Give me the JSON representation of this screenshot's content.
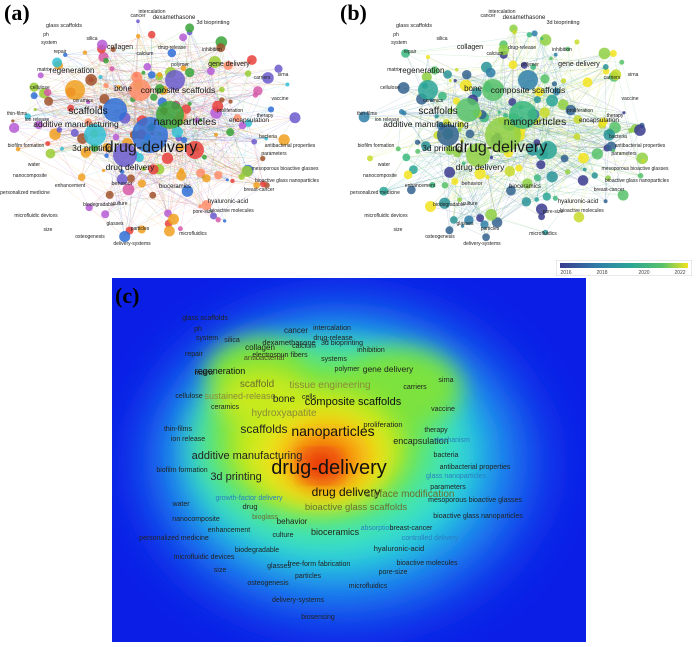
{
  "panels": {
    "a": {
      "label": "(a)"
    },
    "b": {
      "label": "(b)"
    },
    "c": {
      "label": "(c)"
    }
  },
  "legend": {
    "ticks": [
      "2016",
      "2018",
      "2020",
      "2022"
    ],
    "colors": [
      "#3b3b8f",
      "#2f7fa8",
      "#2ba597",
      "#57c26a",
      "#f2e41e"
    ]
  },
  "network_terms": [
    "intercalation",
    "cancer",
    "dexamethasone",
    "3d bioprinting",
    "glass scaffolds",
    "ph",
    "silica",
    "system",
    "collagen",
    "calcium",
    "drug-release",
    "inhibition",
    "repair",
    "matrix",
    "regeneration",
    "polymer",
    "gene delivery",
    "carriers",
    "sirna",
    "cellulose",
    "bone",
    "composite scaffolds",
    "vaccine",
    "ceramics",
    "scaffolds",
    "nanoparticles",
    "proliferation",
    "encapsulation",
    "therapy",
    "additive manufacturing",
    "thin-films",
    "ion release",
    "bacteria",
    "antibacterial properties",
    "biofilm formation",
    "3d printing",
    "drug-delivery",
    "parameters",
    "water",
    "drug delivery",
    "mesoporous bioactive glasses",
    "nanocomposite",
    "bioactive glass nanoparticles",
    "enhancement",
    "breast-cancer",
    "personalized medicine",
    "behavior",
    "bioceramics",
    "hyaluronic-acid",
    "biodegradable",
    "bioactive molecules",
    "microfluidic devices",
    "culture",
    "pore-size",
    "size",
    "glasses",
    "particles",
    "osteogenesis",
    "microfluidics",
    "delivery-systems",
    "biosensing"
  ],
  "density_terms": {
    "cancer": "cancer",
    "intercalation": "intercalation",
    "glass_scaffolds": "glass scaffolds",
    "dexamethasone": "dexamethasone",
    "bioprinting": "3d bioprinting",
    "ph": "ph",
    "electrospun": "electrospun fibers",
    "system": "system",
    "silica": "silica",
    "calcium": "calcium",
    "drug_release": "drug-release",
    "collagen": "collagen",
    "antibacterial": "antibacterial",
    "repair": "repair",
    "systems": "systems",
    "inhibition": "inhibition",
    "matrix": "matrix",
    "regeneration": "regeneration",
    "polymer": "polymer",
    "gene_delivery": "gene delivery",
    "scaffold": "scaffold",
    "tissue_engineering": "tissue engineering",
    "carriers": "carriers",
    "sirna": "sirna",
    "cellulose": "cellulose",
    "sustained": "sustained-release",
    "bone": "bone",
    "cells": "cells",
    "composite_scaffolds": "composite scaffolds",
    "ceramics": "ceramics",
    "hydroxyapatite": "hydroxyapatite",
    "vaccine": "vaccine",
    "scaffolds": "scaffolds",
    "nanoparticles": "nanoparticles",
    "proliferation": "proliferation",
    "thin_films": "thin-films",
    "therapy": "therapy",
    "ion_release": "ion release",
    "encapsulation": "encapsulation",
    "mechanism": "mechanism",
    "additive_manufacturing": "additive manufacturing",
    "bacteria": "bacteria",
    "drug_delivery_big": "drug-delivery",
    "antibacterial_properties": "antibacterial properties",
    "biofilm_formation": "biofilm formation",
    "3d_printing": "3d printing",
    "glass_nanoparticles": "glass nanoparticles",
    "parameters": "parameters",
    "drug_delivery": "drug delivery",
    "surface_modification": "surface modification",
    "growth_factor_delivery": "growth-factor delivery",
    "mesoporous_bioactive_glasses": "mesoporous bioactive glasses",
    "water": "water",
    "drug": "drug",
    "bioactive_glass_scaffolds": "bioactive glass scaffolds",
    "nanocomposite": "nanocomposite",
    "bioglass": "bioglass",
    "bioactive_glass_nanoparticles": "bioactive glass nanoparticles",
    "behavior": "behavior",
    "enhancement": "enhancement",
    "absorption": "absorption",
    "breast_cancer": "breast-cancer",
    "personalized_medicine": "personalized medicine",
    "culture": "culture",
    "bioceramics": "bioceramics",
    "controlled_delivery": "controlled delivery",
    "biodegradable": "biodegradable",
    "hyaluronic_acid": "hyaluronic-acid",
    "microfluidic_devices": "microfluidic devices",
    "freeform": "free-form fabrication",
    "bioactive_molecules": "bioactive molecules",
    "size": "size",
    "glasses": "glasses",
    "pore_size": "pore-size",
    "particles": "particles",
    "osteogenesis": "osteogenesis",
    "microfluidics": "microfluidics",
    "delivery_systems": "delivery-systems",
    "biosensing": "biosensing"
  }
}
